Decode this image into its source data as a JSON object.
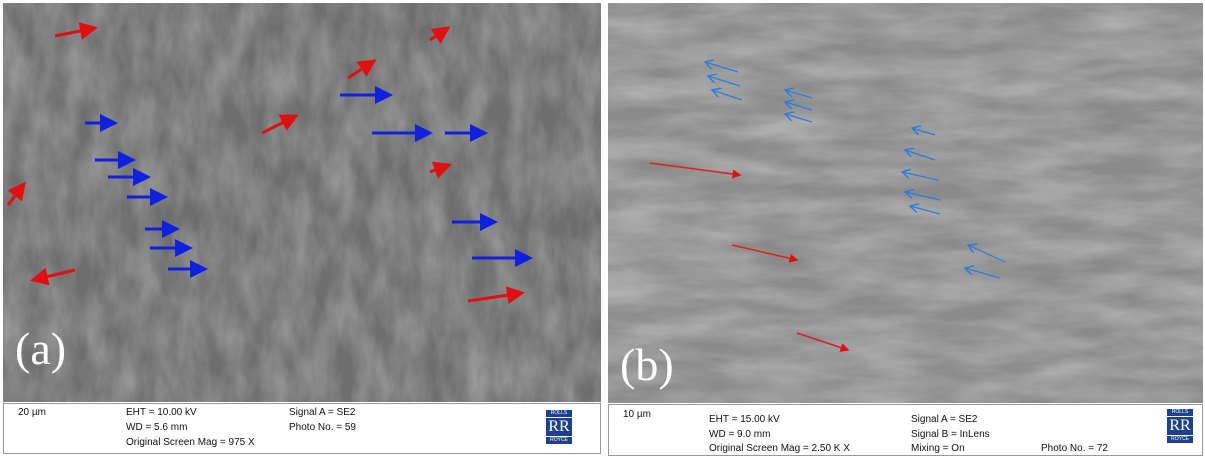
{
  "panels": [
    {
      "label": "(a)",
      "scale_bar": "20 µm",
      "info": [
        "EHT = 10.00 kV",
        "WD =  5.6 mm",
        "Original Screen Mag =  975 X",
        "Signal A = SE2",
        "Photo No. = 59"
      ],
      "logo": [
        "ROLLS",
        "RR",
        "ROYCE"
      ]
    },
    {
      "label": "(b)",
      "scale_bar": "10 µm",
      "info": [
        "EHT = 15.00 kV",
        "WD =  9.0 mm",
        "Original Screen Mag =   2.50 K X",
        "Signal A = SE2",
        "Signal B = InLens",
        "Mixing = On",
        "Photo No. = 72"
      ],
      "logo": [
        "ROLLS",
        "RR",
        "ROYCE"
      ]
    }
  ]
}
